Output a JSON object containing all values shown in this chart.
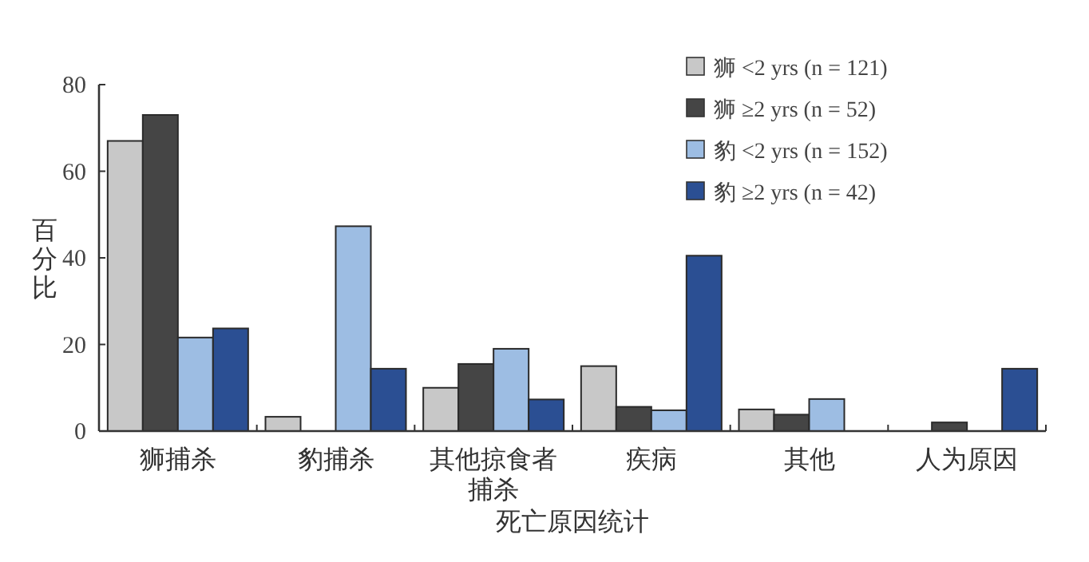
{
  "chart_data": {
    "type": "bar",
    "xlabel": "死亡原因统计",
    "ylabel": "百分比",
    "categories": [
      "狮捕杀",
      "豹捕杀",
      "其他掠食者捕杀",
      "疾病",
      "其他",
      "人为原因"
    ],
    "series": [
      {
        "name": "狮 <2 yrs (n = 121)",
        "color": "#c8c8c8",
        "values": [
          67,
          3.3,
          10,
          15,
          5,
          0
        ]
      },
      {
        "name": "狮 ≥2 yrs (n = 52)",
        "color": "#454545",
        "values": [
          73,
          0,
          15.5,
          5.6,
          3.8,
          2
        ]
      },
      {
        "name": "豹 <2 yrs (n = 152)",
        "color": "#9dbde3",
        "values": [
          21.6,
          47.3,
          19,
          4.8,
          7.4,
          0
        ]
      },
      {
        "name": "豹 ≥2 yrs (n = 42)",
        "color": "#2b4f93",
        "values": [
          23.7,
          14.4,
          7.3,
          40.5,
          0,
          14.4
        ]
      }
    ],
    "ylim": [
      0,
      80
    ],
    "yticks": [
      0,
      20,
      40,
      60,
      80
    ],
    "legend": "top right",
    "grid": false
  }
}
